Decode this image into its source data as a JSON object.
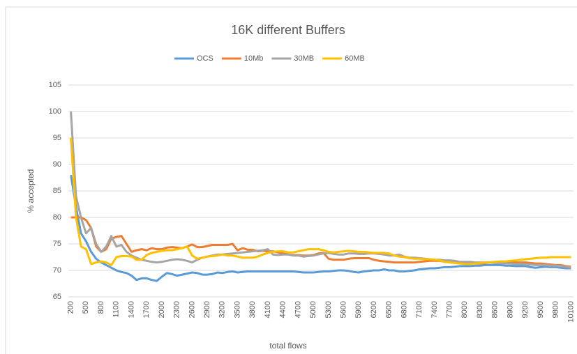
{
  "chart_data": {
    "type": "line",
    "title": "16K different Buffers",
    "x_label": "total flows",
    "y_label": "% accepted",
    "categories": [
      "200",
      null,
      null,
      "500",
      null,
      null,
      "800",
      null,
      null,
      "1100",
      null,
      null,
      "1400",
      null,
      null,
      "1700",
      null,
      null,
      "2000",
      null,
      null,
      "2300",
      null,
      null,
      "2600",
      null,
      null,
      "2900",
      null,
      null,
      "3200",
      null,
      null,
      "3500",
      null,
      null,
      "3800",
      null,
      null,
      "4100",
      null,
      null,
      "4400",
      null,
      null,
      "4700",
      null,
      null,
      "5000",
      null,
      null,
      "5300",
      null,
      null,
      "5600",
      null,
      null,
      "5900",
      null,
      null,
      "6200",
      null,
      null,
      "6500",
      null,
      null,
      "6800",
      null,
      null,
      "7100",
      null,
      null,
      "7400",
      null,
      null,
      "7700",
      null,
      null,
      "8000",
      null,
      null,
      "8300",
      null,
      null,
      "8600",
      null,
      null,
      "8900",
      null,
      null,
      "9200",
      null,
      null,
      "9500",
      null,
      null,
      "9800",
      null,
      null,
      "10100"
    ],
    "series": [
      {
        "name": "OCS",
        "color": "#5b9bd5",
        "values": [
          88,
          82,
          77,
          75.5,
          73.5,
          72.2,
          71.5,
          71,
          70.5,
          70,
          69.7,
          69.5,
          69,
          68.2,
          68.5,
          68.5,
          68.2,
          68,
          68.8,
          69.5,
          69.3,
          69,
          69.2,
          69.4,
          69.6,
          69.5,
          69.2,
          69.2,
          69.3,
          69.6,
          69.5,
          69.7,
          69.8,
          69.6,
          69.7,
          69.8,
          69.8,
          69.8,
          69.8,
          69.8,
          69.8,
          69.8,
          69.8,
          69.8,
          69.8,
          69.7,
          69.6,
          69.6,
          69.6,
          69.7,
          69.8,
          69.8,
          69.9,
          70,
          70,
          69.9,
          69.7,
          69.6,
          69.8,
          69.9,
          70,
          70,
          70.2,
          70,
          70,
          69.8,
          69.8,
          69.9,
          70,
          70.2,
          70.3,
          70.4,
          70.4,
          70.5,
          70.6,
          70.6,
          70.7,
          70.8,
          70.8,
          70.8,
          70.9,
          70.9,
          71,
          71,
          71,
          71,
          70.9,
          70.9,
          70.8,
          70.8,
          70.8,
          70.6,
          70.5,
          70.6,
          70.7,
          70.6,
          70.6,
          70.5,
          70.4,
          70.4
        ]
      },
      {
        "name": "10Mb",
        "color": "#ed7d31",
        "values": [
          80,
          80,
          80,
          79.5,
          78,
          74.5,
          73.5,
          74,
          76,
          76.3,
          76.5,
          75,
          73.5,
          73.8,
          74,
          73.8,
          74.2,
          74,
          74,
          74.3,
          74.4,
          74.3,
          74.2,
          74.5,
          74.9,
          74.4,
          74.4,
          74.6,
          74.8,
          74.8,
          74.8,
          74.8,
          75,
          73.8,
          74.2,
          73.9,
          73.9,
          73.6,
          73.7,
          73.6,
          73.6,
          73.4,
          73.2,
          73,
          72.9,
          72.9,
          72.8,
          72.8,
          72.9,
          73.2,
          73.3,
          72.2,
          72,
          72,
          72,
          72.2,
          72.3,
          72.3,
          72.3,
          72.3,
          72,
          71.8,
          71.7,
          71.6,
          71.5,
          71.5,
          71.5,
          71.5,
          71.5,
          71.6,
          71.7,
          71.8,
          71.8,
          71.8,
          71.6,
          71.6,
          71.5,
          71.4,
          71.4,
          71.4,
          71.3,
          71.3,
          71.4,
          71.5,
          71.5,
          71.6,
          71.6,
          71.6,
          71.5,
          71.5,
          71.5,
          71.4,
          71.3,
          71.3,
          71.2,
          71.1,
          71,
          71,
          70.8,
          70.7
        ]
      },
      {
        "name": "30MB",
        "color": "#a5a5a5",
        "values": [
          100,
          84,
          80,
          77,
          78,
          75,
          73.5,
          74.5,
          76.5,
          74.5,
          74.8,
          73.5,
          72.8,
          72.4,
          72,
          71.8,
          71.6,
          71.5,
          71.6,
          71.8,
          72,
          72.1,
          72,
          71.8,
          71.5,
          72,
          72.4,
          72.6,
          72.8,
          73,
          73,
          73.1,
          73.2,
          73.3,
          73.4,
          73.5,
          73.6,
          73.7,
          73.8,
          74,
          73,
          72.9,
          73,
          73,
          72.8,
          72.8,
          72.6,
          72.7,
          72.8,
          73,
          73.2,
          73.3,
          73.1,
          73,
          73,
          73.2,
          73.2,
          73.1,
          73.1,
          73.2,
          73.2,
          73.1,
          73,
          72.8,
          72.8,
          73,
          72.6,
          72.4,
          72.4,
          72.3,
          72.2,
          72.1,
          72,
          72,
          71.9,
          71.9,
          71.8,
          71.6,
          71.6,
          71.6,
          71.5,
          71.5,
          71.5,
          71.5,
          71.4,
          71.4,
          71.3,
          71.3,
          71.2,
          71.2,
          71.1,
          71.1,
          71,
          71,
          71,
          70.9,
          70.9,
          70.8,
          70.7,
          70.5
        ]
      },
      {
        "name": "60MB",
        "color": "#ffc000",
        "values": [
          95,
          80,
          74.5,
          74,
          71.2,
          71.5,
          71.7,
          71.5,
          71,
          72.5,
          72.7,
          72.7,
          72.6,
          72,
          72,
          72.9,
          73.3,
          73.5,
          73.7,
          73.8,
          73.8,
          74,
          74.2,
          74.5,
          72.8,
          72.2,
          72.4,
          72.6,
          72.7,
          72.8,
          73,
          72.8,
          72.8,
          72.6,
          72.4,
          72.4,
          72.4,
          72.6,
          73,
          73.3,
          73.5,
          73.6,
          73.6,
          73.4,
          73.4,
          73.6,
          73.8,
          74,
          74,
          74,
          73.8,
          73.5,
          73.4,
          73.5,
          73.6,
          73.7,
          73.6,
          73.5,
          73.5,
          73.4,
          73.3,
          73.3,
          73.3,
          73.2,
          72.8,
          72.6,
          72.5,
          72.3,
          72.2,
          72.2,
          72.1,
          72.1,
          72,
          71.9,
          71.6,
          71.5,
          71.4,
          71.3,
          71.2,
          71.2,
          71.3,
          71.4,
          71.5,
          71.5,
          71.6,
          71.7,
          71.7,
          71.8,
          71.9,
          72,
          72.1,
          72.2,
          72.3,
          72.4,
          72.4,
          72.5,
          72.5,
          72.5,
          72.5,
          72.5
        ]
      }
    ],
    "ylim": [
      65,
      105
    ],
    "yticks": [
      65,
      70,
      75,
      80,
      85,
      90,
      95,
      100,
      105
    ],
    "grid": true,
    "legend": "top"
  }
}
